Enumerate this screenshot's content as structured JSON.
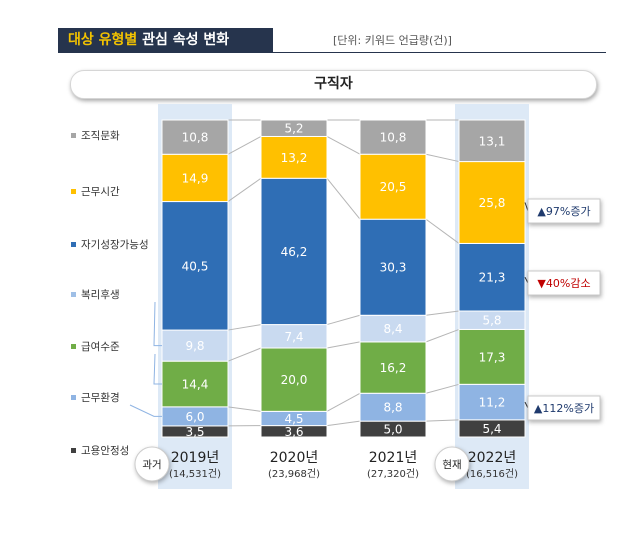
{
  "header": {
    "title_accent": "대상 유형별",
    "title_rest": " 관심 속성 변화",
    "unit_note": "[단위: 키워드 언급량(건)]"
  },
  "panel_title": "구직자",
  "chart_data": {
    "type": "bar",
    "stacked": true,
    "categories": [
      "2019년",
      "2020년",
      "2021년",
      "2022년"
    ],
    "category_counts": [
      "(14,531건)",
      "(23,968건)",
      "(27,320건)",
      "(16,516건)"
    ],
    "series": [
      {
        "name": "고용안정성",
        "color": "#404040",
        "text_color": "#ffffff",
        "values": [
          3.5,
          3.6,
          5.0,
          5.4
        ]
      },
      {
        "name": "근무환경",
        "color": "#8fb4e3",
        "text_color": "#ffffff",
        "values": [
          6.0,
          4.5,
          8.8,
          11.2
        ]
      },
      {
        "name": "급여수준",
        "color": "#70ad47",
        "text_color": "#ffffff",
        "values": [
          14.4,
          20.0,
          16.2,
          17.3
        ]
      },
      {
        "name": "복리후생",
        "color": "#c9daf0",
        "text_color": "#ffffff",
        "values": [
          9.8,
          7.4,
          8.4,
          5.8
        ]
      },
      {
        "name": "자기성장가능성",
        "color": "#2f6eb5",
        "text_color": "#ffffff",
        "values": [
          40.5,
          46.2,
          30.3,
          21.3
        ]
      },
      {
        "name": "근무시간",
        "color": "#ffc000",
        "text_color": "#ffffff",
        "values": [
          14.9,
          13.2,
          20.5,
          25.8
        ]
      },
      {
        "name": "조직문화",
        "color": "#a6a6a6",
        "text_color": "#ffffff",
        "values": [
          10.8,
          5.2,
          10.8,
          13.1
        ]
      }
    ],
    "highlight_columns": [
      0,
      3
    ],
    "past_label": "과거",
    "present_label": "현재",
    "annotations": [
      {
        "series": "근무시간",
        "text": "▲97%증가",
        "color": "#1f3a6d"
      },
      {
        "series": "자기성장가능성",
        "text": "▼40%감소",
        "color": "#c00000"
      },
      {
        "series": "근무환경",
        "text": "▲112%증가",
        "color": "#1f3a6d"
      }
    ],
    "legend_position": "left"
  }
}
